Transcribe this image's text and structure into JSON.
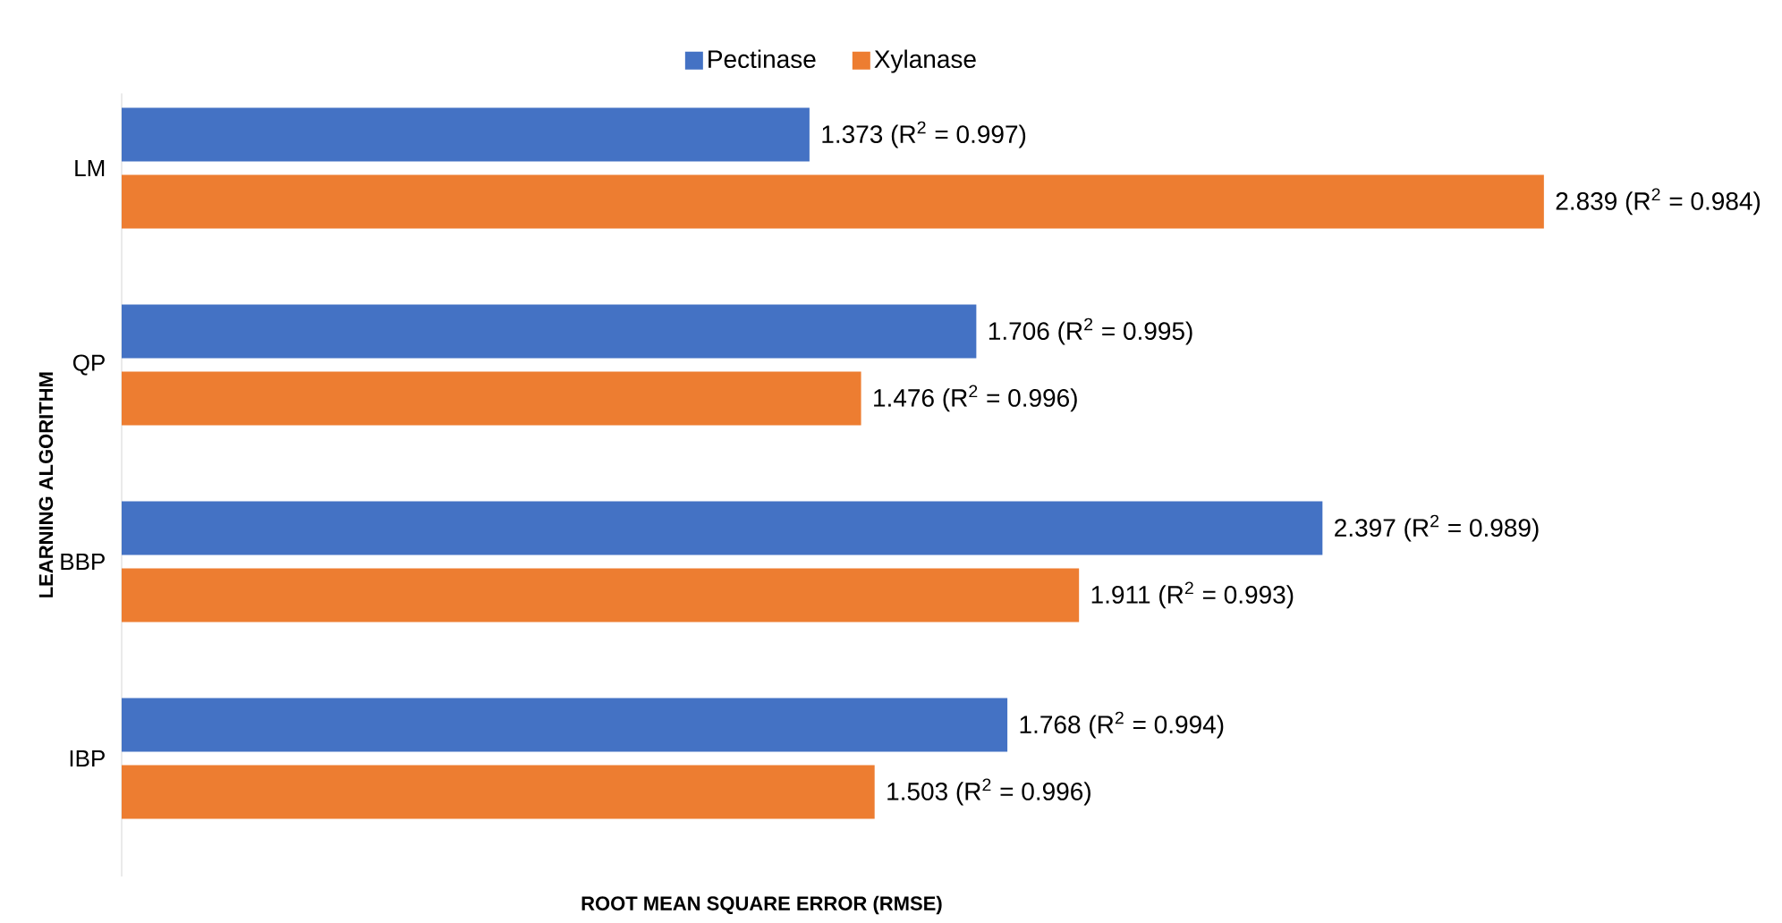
{
  "chart_data": {
    "type": "bar",
    "orientation": "horizontal",
    "categories": [
      "LM",
      "QP",
      "BBP",
      "IBP"
    ],
    "xlabel": "ROOT MEAN SQUARE ERROR (RMSE)",
    "ylabel": "LEARNING ALGORITHM",
    "legend": "top",
    "series": [
      {
        "name": "Pectinase",
        "color": "#4472c4",
        "values": [
          1.373,
          1.706,
          2.397,
          1.768
        ],
        "value_labels": [
          "1.373 (R$^{2}$ = 0.997)",
          "1.706 (R$^{2}$ = 0.995)",
          "2.397 (R$^{2}$ = 0.989)",
          "1.768 (R$^{2}$ = 0.994)"
        ]
      },
      {
        "name": "Xylanase",
        "color": "#ed7d31",
        "values": [
          2.839,
          1.476,
          1.911,
          1.503
        ],
        "value_labels": [
          "2.839 (R$^{2}$ = 0.984)",
          "1.476 (R$^{2}$ = 0.996)",
          "1.911 (R$^{2}$ = 0.993)",
          "1.503 (R$^{2}$ = 0.996)"
        ]
      }
    ]
  }
}
